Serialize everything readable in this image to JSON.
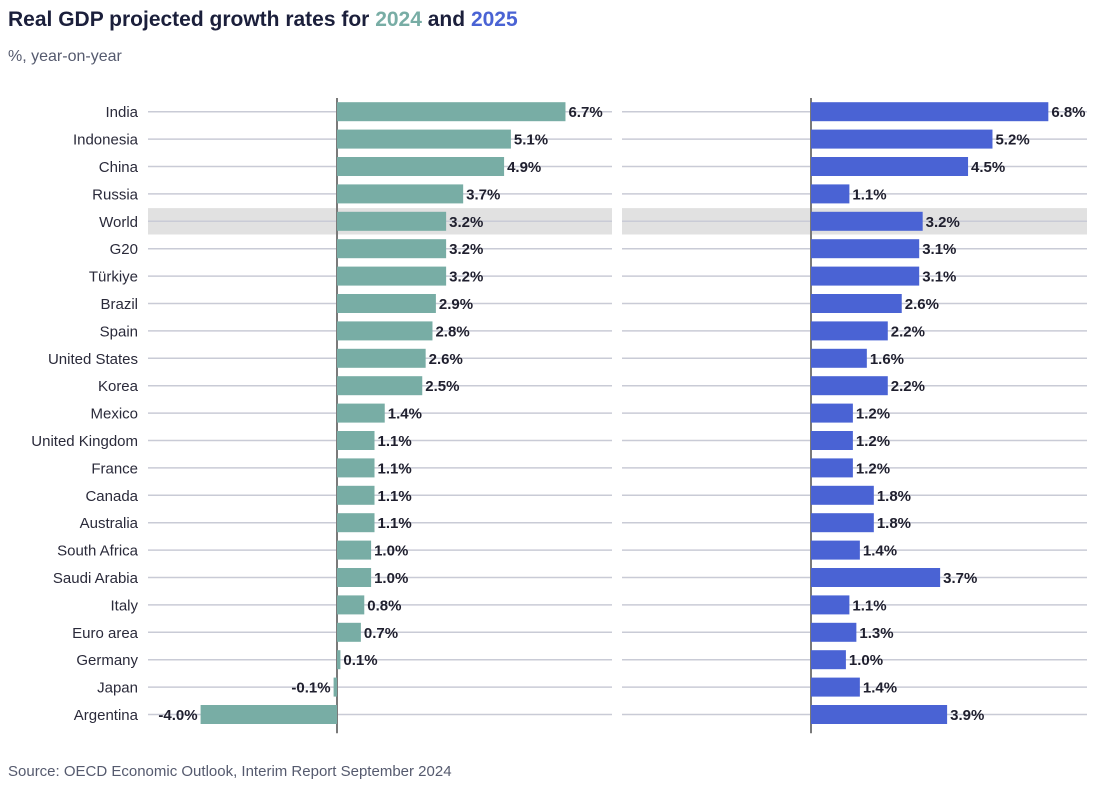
{
  "header": {
    "title_prefix": "Real GDP projected growth rates for ",
    "title_year1": "2024",
    "title_mid": " and ",
    "title_year2": "2025",
    "subtitle": "%, year-on-year"
  },
  "footer": {
    "source": "Source: OECD Economic Outlook, Interim Report September 2024"
  },
  "colors": {
    "series_2024": "#78ada5",
    "series_2025": "#4a63d4",
    "highlight_row": "#e1e1e1",
    "gridline": "#c9cbd6",
    "zero_axis": "#7a7a7a",
    "title": "#1b1f3b"
  },
  "chart_data": {
    "type": "bar",
    "orientation": "horizontal",
    "categories": [
      "India",
      "Indonesia",
      "China",
      "Russia",
      "World",
      "G20",
      "Türkiye",
      "Brazil",
      "Spain",
      "United States",
      "Korea",
      "Mexico",
      "United Kingdom",
      "France",
      "Canada",
      "Australia",
      "South Africa",
      "Saudi Arabia",
      "Italy",
      "Euro area",
      "Germany",
      "Japan",
      "Argentina"
    ],
    "highlight_category": "World",
    "series": [
      {
        "name": "2024",
        "values": [
          6.7,
          5.1,
          4.9,
          3.7,
          3.2,
          3.2,
          3.2,
          2.9,
          2.8,
          2.6,
          2.5,
          1.4,
          1.1,
          1.1,
          1.1,
          1.1,
          1.0,
          1.0,
          0.8,
          0.7,
          0.1,
          -0.1,
          -4.0
        ]
      },
      {
        "name": "2025",
        "values": [
          6.8,
          5.2,
          4.5,
          1.1,
          3.2,
          3.1,
          3.1,
          2.6,
          2.2,
          1.6,
          2.2,
          1.2,
          1.2,
          1.2,
          1.8,
          1.8,
          1.4,
          3.7,
          1.1,
          1.3,
          1.0,
          1.4,
          3.9
        ]
      }
    ],
    "value_suffix": "%",
    "xlim": [
      -4.0,
      6.8
    ],
    "legend": "none (series identified by colored years in title)"
  }
}
